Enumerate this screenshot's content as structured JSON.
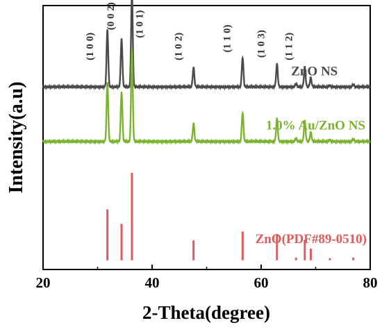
{
  "chart_data": {
    "type": "line",
    "title": "",
    "xlabel": "2-Theta(degree)",
    "ylabel": "Intensity(a.u)",
    "xlim": [
      20,
      80
    ],
    "x_ticks": [
      "20",
      "40",
      "60",
      "80"
    ],
    "y_ticks": false,
    "grid": false,
    "series": [
      {
        "name": "ZnO NS",
        "color": "#4a4a4a",
        "baseline_frac": 0.308,
        "peaks": [
          {
            "x": 31.8,
            "h": 0.218
          },
          {
            "x": 34.4,
            "h": 0.184
          },
          {
            "x": 36.3,
            "h": 0.36
          },
          {
            "x": 47.6,
            "h": 0.073
          },
          {
            "x": 56.6,
            "h": 0.112
          },
          {
            "x": 62.9,
            "h": 0.087
          },
          {
            "x": 66.4,
            "h": 0.012
          },
          {
            "x": 68.0,
            "h": 0.075
          },
          {
            "x": 69.1,
            "h": 0.035
          },
          {
            "x": 72.6,
            "h": 0.005
          },
          {
            "x": 76.9,
            "h": 0.01
          }
        ]
      },
      {
        "name": "1.0% Au/ZnO NS",
        "color": "#7ab32e",
        "baseline_frac": 0.515,
        "peaks": [
          {
            "x": 31.8,
            "h": 0.225
          },
          {
            "x": 34.4,
            "h": 0.189
          },
          {
            "x": 36.3,
            "h": 0.35
          },
          {
            "x": 47.6,
            "h": 0.068
          },
          {
            "x": 56.6,
            "h": 0.11
          },
          {
            "x": 62.9,
            "h": 0.087
          },
          {
            "x": 66.4,
            "h": 0.012
          },
          {
            "x": 68.0,
            "h": 0.078
          },
          {
            "x": 69.1,
            "h": 0.035
          },
          {
            "x": 72.6,
            "h": 0.006
          },
          {
            "x": 76.9,
            "h": 0.01
          }
        ]
      },
      {
        "name": "ZnO(PDF#89-0510)",
        "color": "#e05a5a",
        "type": "stick",
        "baseline_frac": 0.965,
        "peaks": [
          {
            "x": 31.8,
            "h": 0.193
          },
          {
            "x": 34.4,
            "h": 0.138
          },
          {
            "x": 36.3,
            "h": 0.331
          },
          {
            "x": 47.6,
            "h": 0.075
          },
          {
            "x": 56.6,
            "h": 0.109
          },
          {
            "x": 62.9,
            "h": 0.1
          },
          {
            "x": 66.4,
            "h": 0.01
          },
          {
            "x": 68.0,
            "h": 0.078
          },
          {
            "x": 69.1,
            "h": 0.044
          },
          {
            "x": 72.6,
            "h": 0.008
          },
          {
            "x": 76.9,
            "h": 0.01
          }
        ]
      }
    ],
    "annotations": [
      {
        "text": "(1 0 0)",
        "x": 29.2,
        "y_frac": 0.155
      },
      {
        "text": "(0 0 2)",
        "x": 33.0,
        "y_frac": 0.04
      },
      {
        "text": "(1 0 1)",
        "x": 38.3,
        "y_frac": 0.07
      },
      {
        "text": "(1 0 2)",
        "x": 45.4,
        "y_frac": 0.155
      },
      {
        "text": "(1 1 0)",
        "x": 54.3,
        "y_frac": 0.125
      },
      {
        "text": "(1 0 3)",
        "x": 60.6,
        "y_frac": 0.145
      },
      {
        "text": "(1 1 2)",
        "x": 65.7,
        "y_frac": 0.155
      }
    ]
  }
}
